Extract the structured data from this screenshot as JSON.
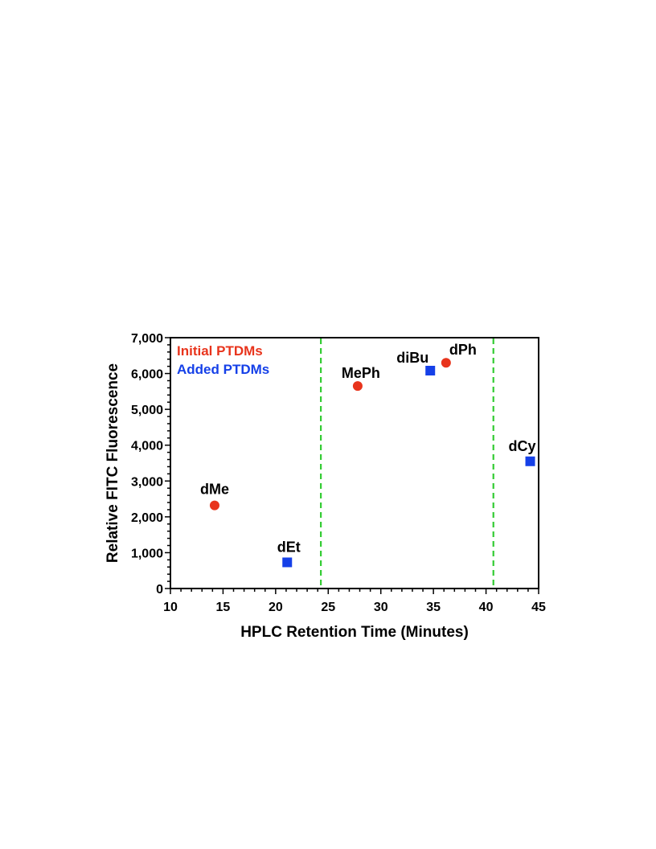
{
  "chart_data": {
    "type": "scatter",
    "xlabel": "HPLC Retention Time (Minutes)",
    "ylabel": "Relative FITC Fluorescence",
    "xlim": [
      10,
      45
    ],
    "ylim": [
      0,
      7000
    ],
    "x_ticks": [
      10,
      15,
      20,
      25,
      30,
      35,
      40,
      45
    ],
    "x_tick_labels": [
      "10",
      "15",
      "20",
      "25",
      "30",
      "35",
      "40",
      "45"
    ],
    "y_ticks": [
      0,
      1000,
      2000,
      3000,
      4000,
      5000,
      6000,
      7000
    ],
    "y_tick_labels": [
      "0",
      "1,000",
      "2,000",
      "3,000",
      "4,000",
      "5,000",
      "6,000",
      "7,000"
    ],
    "grid": false,
    "legend_position": "top-left",
    "series": [
      {
        "name": "Initial PTDMs",
        "marker": "circle",
        "color": "#e8341c",
        "points": [
          {
            "label": "dMe",
            "x": 14.2,
            "y": 2320
          },
          {
            "label": "MePh",
            "x": 27.8,
            "y": 5650
          },
          {
            "label": "dPh",
            "x": 36.2,
            "y": 6300
          }
        ]
      },
      {
        "name": "Added PTDMs",
        "marker": "square",
        "color": "#1540e8",
        "points": [
          {
            "label": "dEt",
            "x": 21.1,
            "y": 730
          },
          {
            "label": "diBu",
            "x": 34.7,
            "y": 6080
          },
          {
            "label": "dCy",
            "x": 44.2,
            "y": 3550
          }
        ]
      }
    ],
    "reference_lines": {
      "orientation": "vertical",
      "style": "dashed",
      "color": "#33cc33",
      "x": [
        24.3,
        40.7
      ]
    }
  }
}
